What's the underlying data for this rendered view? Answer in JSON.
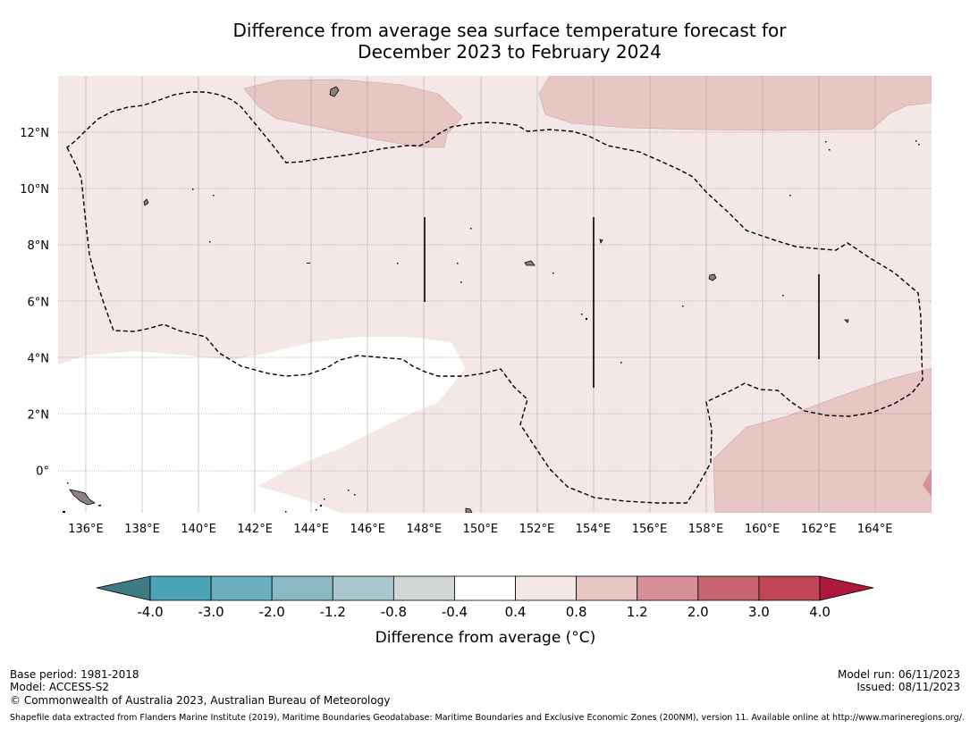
{
  "title": {
    "line1": "Difference from average sea surface temperature forecast for",
    "line2": "December 2023 to February 2024"
  },
  "map": {
    "lon_ticks": [
      "136°E",
      "138°E",
      "140°E",
      "142°E",
      "144°E",
      "146°E",
      "148°E",
      "150°E",
      "152°E",
      "154°E",
      "156°E",
      "158°E",
      "160°E",
      "162°E",
      "164°E"
    ],
    "lat_ticks": [
      "12°N",
      "10°N",
      "8°N",
      "6°N",
      "4°N",
      "2°N",
      "0°"
    ],
    "colors": {
      "band_0_4_0_8": "#f4e8e7",
      "band_0_8_1_2": "#e7c6c3",
      "band_1_2_2_0": "#d6909a",
      "land": "#8c8083",
      "eez_line": "#000000"
    }
  },
  "colorbar": {
    "labels": [
      "-4.0",
      "-3.0",
      "-2.0",
      "-1.2",
      "-0.8",
      "-0.4",
      "0.4",
      "0.8",
      "1.2",
      "2.0",
      "3.0",
      "4.0"
    ],
    "colors": [
      "#3c7b83",
      "#4aa4b5",
      "#6aafbd",
      "#8ab9c4",
      "#a9c8cd",
      "#d3d6d7",
      "#ffffff",
      "#f4e8e7",
      "#e7c6c3",
      "#d6909a",
      "#c8646f",
      "#c04656",
      "#ab1a3a"
    ],
    "title": "Difference from average (°C)"
  },
  "footer": {
    "base_period": "Base period: 1981-2018",
    "model": "Model: ACCESS-S2",
    "copyright": "© Commonwealth of Australia 2023, Australian Bureau of Meteorology",
    "model_run": "Model run: 06/11/2023",
    "issued": "Issued: 08/11/2023",
    "shapefile": "Shapefile data extracted from Flanders Marine Institute (2019), Maritime Boundaries Geodatabase: Maritime Boundaries and Exclusive Economic Zones (200NM), version 11. Available online at http://www.marineregions.org/."
  }
}
